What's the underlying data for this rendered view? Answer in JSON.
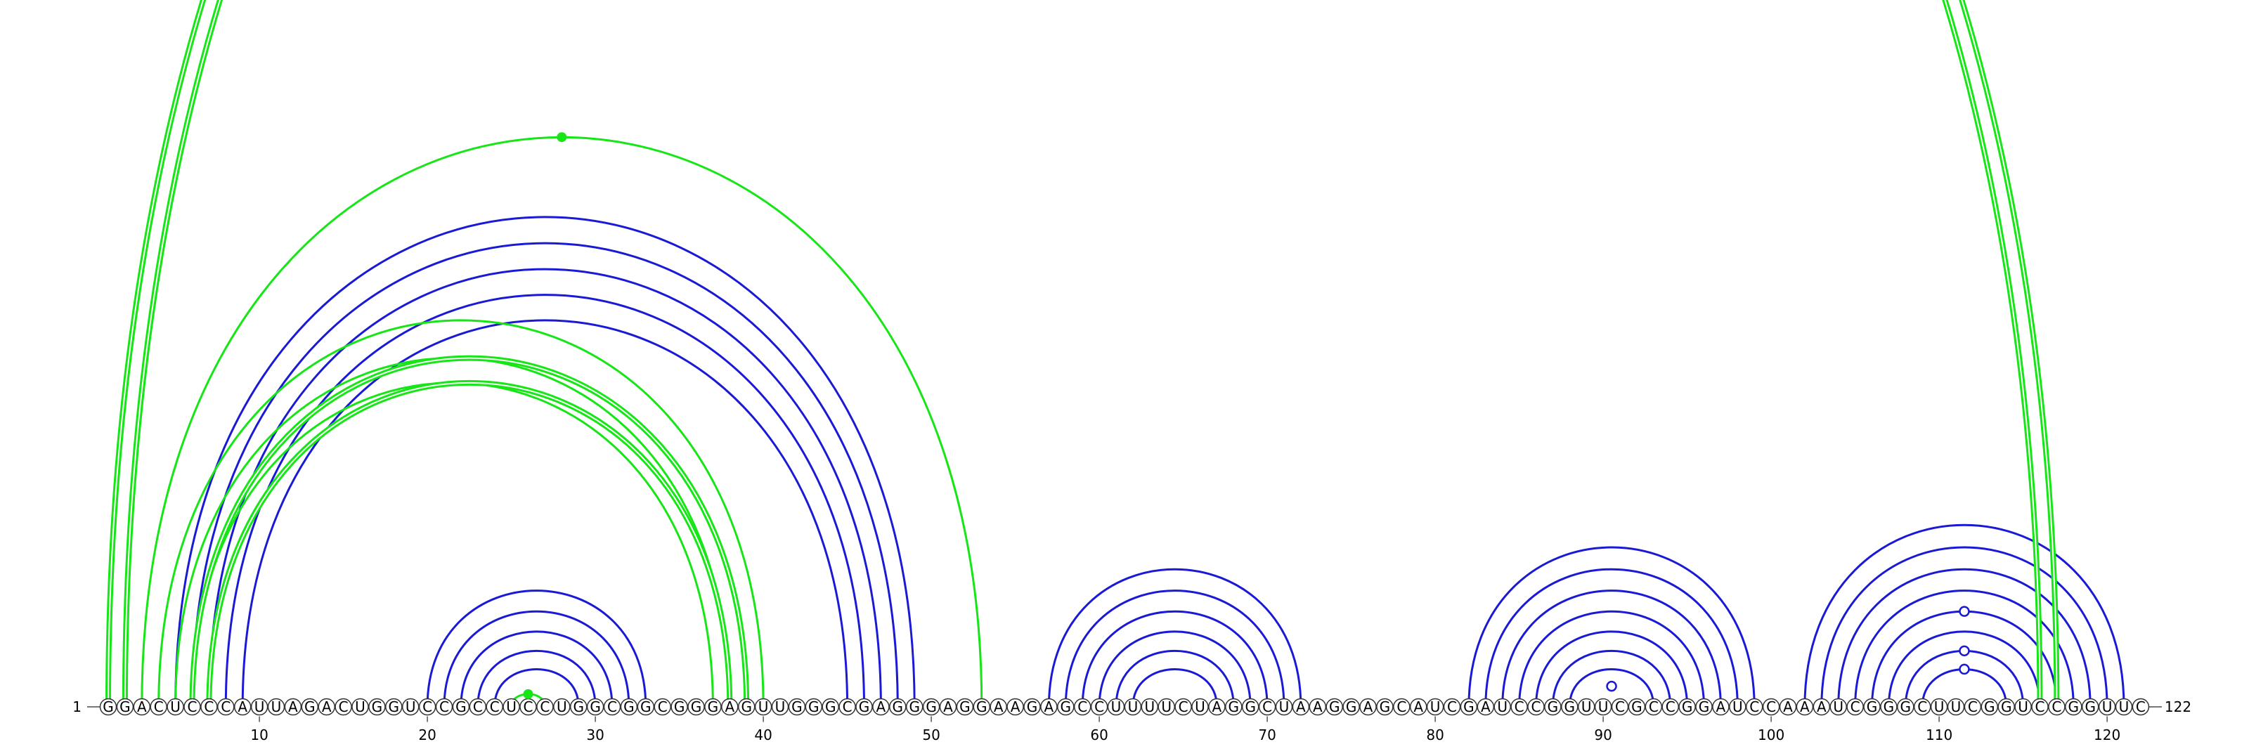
{
  "chart_data": {
    "type": "arc",
    "start_label": "1",
    "end_label": "122",
    "sequence": "GGACUCCCAUUAGACUGGUCCGCCUCCUGGCGGCGGGAGUUGGGCGAGGGAGGAAGAGCCUUUUCUAGGCUAAGGAGCAUCGAUCCGGUUCGCCGGAUCCAAAUCGGGCUUCGGUCCGGUUC",
    "tick_positions": [
      10,
      20,
      30,
      40,
      50,
      60,
      70,
      80,
      90,
      100,
      110,
      120
    ],
    "tick_labels": [
      "10",
      "20",
      "30",
      "40",
      "50",
      "60",
      "70",
      "80",
      "90",
      "100",
      "110",
      "120"
    ],
    "colors": {
      "blue": "#1a1ad6",
      "green": "#16e616",
      "backbone": "#777777"
    },
    "blue_pairs": [
      [
        5,
        49
      ],
      [
        6,
        48
      ],
      [
        7,
        47
      ],
      [
        8,
        46
      ],
      [
        9,
        45
      ],
      [
        20,
        33
      ],
      [
        21,
        32
      ],
      [
        22,
        31
      ],
      [
        23,
        30
      ],
      [
        24,
        29
      ],
      [
        57,
        72
      ],
      [
        58,
        71
      ],
      [
        59,
        70
      ],
      [
        60,
        69
      ],
      [
        61,
        68
      ],
      [
        62,
        67
      ],
      [
        82,
        99
      ],
      [
        83,
        98
      ],
      [
        84,
        97
      ],
      [
        85,
        96
      ],
      [
        86,
        95
      ],
      [
        87,
        94
      ],
      [
        88,
        93
      ],
      [
        102,
        121
      ],
      [
        103,
        120
      ],
      [
        104,
        119
      ],
      [
        105,
        118
      ],
      [
        106,
        117
      ],
      [
        107,
        116
      ],
      [
        108,
        115
      ],
      [
        109,
        114
      ]
    ],
    "green_single_pairs": [
      [
        3,
        53
      ],
      [
        4,
        40
      ],
      [
        5,
        38
      ],
      [
        6,
        37
      ],
      [
        25,
        27
      ]
    ],
    "green_double_pairs": [
      [
        1,
        116
      ],
      [
        2,
        117
      ],
      [
        6,
        39
      ],
      [
        7,
        38
      ]
    ],
    "green_dots": [
      {
        "i": 3,
        "j": 53
      },
      {
        "i": 25,
        "j": 27
      }
    ],
    "blue_open_dots": [
      {
        "i": 89,
        "j": 92
      },
      {
        "i": 109,
        "j": 114
      },
      {
        "i": 108,
        "j": 115
      },
      {
        "i": 106,
        "j": 117
      }
    ]
  }
}
